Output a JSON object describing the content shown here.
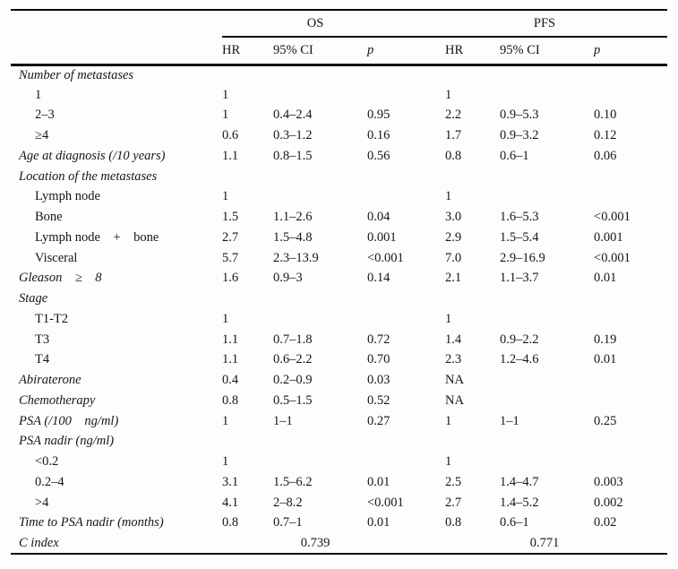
{
  "table": {
    "groups": [
      {
        "label": "OS"
      },
      {
        "label": "PFS"
      }
    ],
    "sub_headers": [
      "HR",
      "95% CI",
      "p",
      "HR",
      "95% CI",
      "p"
    ],
    "rows": [
      {
        "label": "Number of metastases",
        "style": "category",
        "cells": [
          "",
          "",
          "",
          "",
          "",
          ""
        ]
      },
      {
        "label": "1",
        "style": "item",
        "cells": [
          "1",
          "",
          "",
          "1",
          "",
          ""
        ]
      },
      {
        "label": "2–3",
        "style": "item",
        "cells": [
          "1",
          "0.4–2.4",
          "0.95",
          "2.2",
          "0.9–5.3",
          "0.10"
        ]
      },
      {
        "label": "≥4",
        "style": "item",
        "cells": [
          "0.6",
          "0.3–1.2",
          "0.16",
          "1.7",
          "0.9–3.2",
          "0.12"
        ]
      },
      {
        "label": "Age at diagnosis (/10 years)",
        "style": "category",
        "cells": [
          "1.1",
          "0.8–1.5",
          "0.56",
          "0.8",
          "0.6–1",
          "0.06"
        ]
      },
      {
        "label": "Location of the metastases",
        "style": "category",
        "cells": [
          "",
          "",
          "",
          "",
          "",
          ""
        ]
      },
      {
        "label": "Lymph node",
        "style": "item",
        "cells": [
          "1",
          "",
          "",
          "1",
          "",
          ""
        ]
      },
      {
        "label": "Bone",
        "style": "item",
        "cells": [
          "1.5",
          "1.1–2.6",
          "0.04",
          "3.0",
          "1.6–5.3",
          "<0.001"
        ]
      },
      {
        "label": "Lymph node + bone",
        "style": "item",
        "cells": [
          "2.7",
          "1.5–4.8",
          "0.001",
          "2.9",
          "1.5–5.4",
          "0.001"
        ]
      },
      {
        "label": "Visceral",
        "style": "item",
        "cells": [
          "5.7",
          "2.3–13.9",
          "<0.001",
          "7.0",
          "2.9–16.9",
          "<0.001"
        ]
      },
      {
        "label": "Gleason ≥ 8",
        "style": "category",
        "cells": [
          "1.6",
          "0.9–3",
          "0.14",
          "2.1",
          "1.1–3.7",
          "0.01"
        ]
      },
      {
        "label": "Stage",
        "style": "category",
        "cells": [
          "",
          "",
          "",
          "",
          "",
          ""
        ]
      },
      {
        "label": "T1-T2",
        "style": "item",
        "cells": [
          "1",
          "",
          "",
          "1",
          "",
          ""
        ]
      },
      {
        "label": "T3",
        "style": "item",
        "cells": [
          "1.1",
          "0.7–1.8",
          "0.72",
          "1.4",
          "0.9–2.2",
          "0.19"
        ]
      },
      {
        "label": "T4",
        "style": "item",
        "cells": [
          "1.1",
          "0.6–2.2",
          "0.70",
          "2.3",
          "1.2–4.6",
          "0.01"
        ]
      },
      {
        "label": "Abiraterone",
        "style": "category",
        "cells": [
          "0.4",
          "0.2–0.9",
          "0.03",
          "NA",
          "",
          ""
        ]
      },
      {
        "label": "Chemotherapy",
        "style": "category",
        "cells": [
          "0.8",
          "0.5–1.5",
          "0.52",
          "NA",
          "",
          ""
        ]
      },
      {
        "label": "PSA (/100 ng/ml)",
        "style": "category",
        "cells": [
          "1",
          "1–1",
          "0.27",
          "1",
          "1–1",
          "0.25"
        ]
      },
      {
        "label": "PSA nadir (ng/ml)",
        "style": "category",
        "cells": [
          "",
          "",
          "",
          "",
          "",
          ""
        ]
      },
      {
        "label": "<0.2",
        "style": "item",
        "cells": [
          "1",
          "",
          "",
          "1",
          "",
          ""
        ]
      },
      {
        "label": "0.2–4",
        "style": "item",
        "cells": [
          "3.1",
          "1.5–6.2",
          "0.01",
          "2.5",
          "1.4–4.7",
          "0.003"
        ]
      },
      {
        "label": ">4",
        "style": "item",
        "cells": [
          "4.1",
          "2–8.2",
          "<0.001",
          "2.7",
          "1.4–5.2",
          "0.002"
        ]
      },
      {
        "label": "Time to PSA nadir (months)",
        "style": "category",
        "cells": [
          "0.8",
          "0.7–1",
          "0.01",
          "0.8",
          "0.6–1",
          "0.02"
        ]
      },
      {
        "label": "C index",
        "style": "category",
        "span_cells": [
          "0.739",
          "0.771"
        ]
      }
    ]
  }
}
